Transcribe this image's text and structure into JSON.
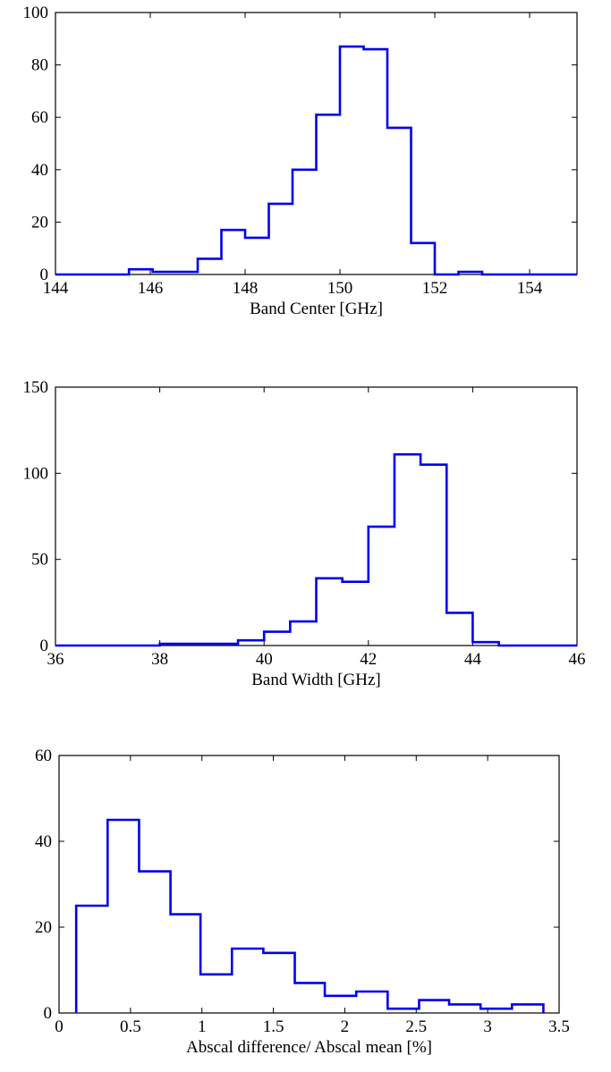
{
  "chart_data": [
    {
      "type": "bar",
      "style": "stairs-histogram",
      "xlabel": "Band Center [GHz]",
      "ylabel": "",
      "xlim": [
        144,
        155
      ],
      "ylim": [
        0,
        100
      ],
      "xticks": [
        144,
        146,
        148,
        150,
        152,
        154
      ],
      "yticks": [
        0,
        20,
        40,
        60,
        80,
        100
      ],
      "bin_edges": [
        144,
        145.55,
        146.05,
        147.0,
        147.5,
        148.0,
        148.5,
        149.0,
        149.5,
        150.0,
        150.5,
        151.0,
        151.5,
        152.0,
        152.5,
        153.0,
        155
      ],
      "values": [
        0,
        2,
        1,
        6,
        17,
        14,
        27,
        40,
        61,
        87,
        86,
        56,
        12,
        0,
        1,
        0
      ],
      "color": "#0000ee"
    },
    {
      "type": "bar",
      "style": "stairs-histogram",
      "xlabel": "Band Width [GHz]",
      "ylabel": "",
      "xlim": [
        36,
        46
      ],
      "ylim": [
        0,
        150
      ],
      "xticks": [
        36,
        38,
        40,
        42,
        44,
        46
      ],
      "yticks": [
        0,
        50,
        100,
        150
      ],
      "bin_edges": [
        36,
        38.0,
        39.5,
        40.0,
        40.5,
        41.0,
        41.5,
        42.0,
        42.5,
        43.0,
        43.5,
        44.0,
        44.5,
        46
      ],
      "values": [
        0,
        1,
        3,
        8,
        14,
        39,
        37,
        69,
        111,
        105,
        19,
        2,
        0
      ],
      "color": "#0000ee"
    },
    {
      "type": "bar",
      "style": "stairs-histogram",
      "xlabel": "Abscal difference/ Abscal mean [%]",
      "ylabel": "",
      "xlim": [
        0,
        3.5
      ],
      "ylim": [
        0,
        60
      ],
      "xticks": [
        "0",
        "0.5",
        "1",
        "1.5",
        "2",
        "2.5",
        "3",
        "3.5"
      ],
      "yticks": [
        0,
        20,
        40,
        60
      ],
      "bin_edges": [
        0.12,
        0.34,
        0.56,
        0.78,
        0.99,
        1.21,
        1.43,
        1.65,
        1.86,
        2.08,
        2.3,
        2.52,
        2.73,
        2.95,
        3.17,
        3.39
      ],
      "values": [
        25,
        45,
        33,
        23,
        9,
        15,
        14,
        7,
        4,
        5,
        1,
        3,
        2,
        1,
        2
      ],
      "color": "#0000ee"
    }
  ]
}
